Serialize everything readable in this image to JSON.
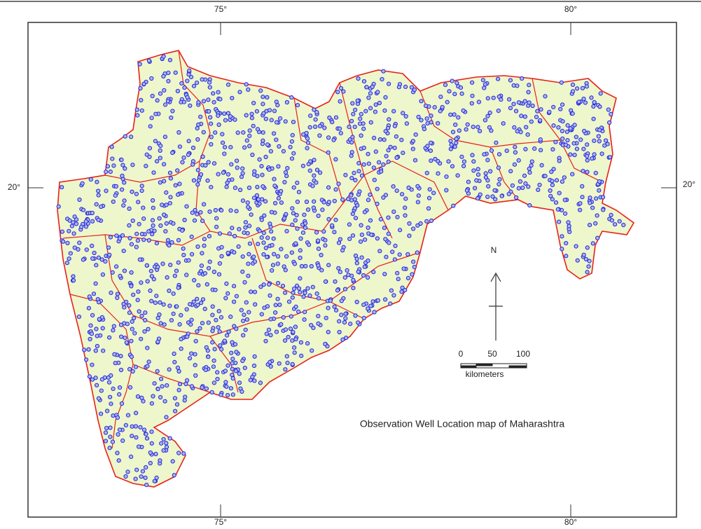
{
  "title": "Observation Well Location map of Maharashtra",
  "graticule": {
    "top": [
      "75°",
      "80°"
    ],
    "bottom": [
      "75°",
      "80°"
    ],
    "left": [
      "20°"
    ],
    "right": [
      "20°"
    ]
  },
  "north_arrow": "N",
  "scale_bar": {
    "ticks": [
      0,
      50,
      100
    ],
    "unit": "kilometers"
  }
}
